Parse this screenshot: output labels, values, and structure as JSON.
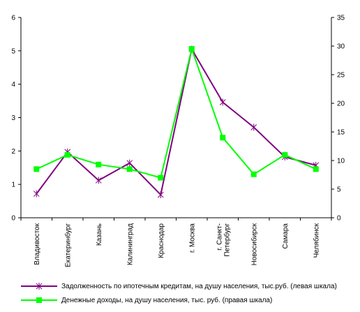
{
  "chart_data": {
    "type": "line",
    "categories": [
      "Владивосток",
      "Екатеринбург",
      "Казань",
      "Калининград",
      "Краснодар",
      "г. Москва",
      "г. Санкт-Петербург",
      "Новосибирск",
      "Самара",
      "Челябинск"
    ],
    "series": [
      {
        "name": "Задолженность по ипотечным кредитам, на душу населения, тыс.руб. (левая шкала)",
        "axis": "left",
        "color": "#800080",
        "marker": "star",
        "values": [
          0.72,
          1.97,
          1.12,
          1.64,
          0.69,
          5.05,
          3.46,
          2.71,
          1.82,
          1.57
        ]
      },
      {
        "name": "Денежные доходы, на душу населения, тыс. руб. (правая шкала)",
        "axis": "right",
        "color": "#00ff00",
        "marker": "square",
        "values": [
          8.5,
          11.0,
          9.3,
          8.5,
          7.0,
          29.5,
          14.0,
          7.6,
          11.0,
          8.5
        ]
      }
    ],
    "yleft": {
      "ylim": [
        0,
        6
      ],
      "ticks": [
        0,
        1,
        2,
        3,
        4,
        5,
        6
      ]
    },
    "yright": {
      "ylim": [
        0,
        35
      ],
      "ticks": [
        0,
        5,
        10,
        15,
        20,
        25,
        30,
        35
      ]
    },
    "grid": false,
    "legend_position": "bottom"
  }
}
